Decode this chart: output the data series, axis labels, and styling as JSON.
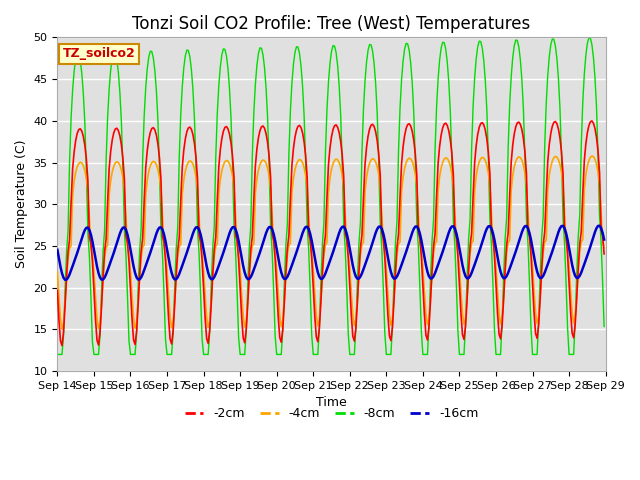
{
  "title": "Tonzi Soil CO2 Profile: Tree (West) Temperatures",
  "xlabel": "Time",
  "ylabel": "Soil Temperature (C)",
  "ylim": [
    10,
    50
  ],
  "site_label": "TZ_soilco2",
  "legend": [
    "-2cm",
    "-4cm",
    "-8cm",
    "-16cm"
  ],
  "line_colors": [
    "#ff0000",
    "#ffa500",
    "#00dd00",
    "#0000cc"
  ],
  "bg_color": "#e0e0e0",
  "xtick_labels": [
    "Sep 14",
    "Sep 15",
    "Sep 16",
    "Sep 17",
    "Sep 18",
    "Sep 19",
    "Sep 20",
    "Sep 21",
    "Sep 22",
    "Sep 23",
    "Sep 24",
    "Sep 25",
    "Sep 26",
    "Sep 27",
    "Sep 28",
    "Sep 29"
  ],
  "title_fontsize": 12,
  "axis_fontsize": 9,
  "tick_fontsize": 8
}
